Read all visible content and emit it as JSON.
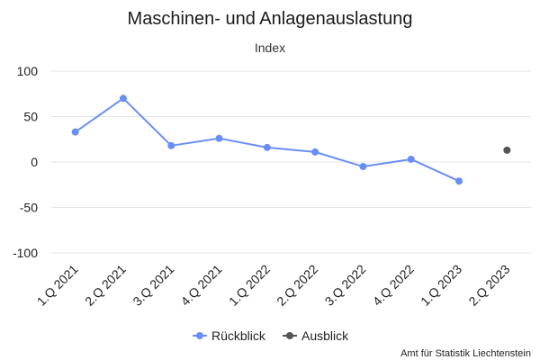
{
  "chart_data": {
    "type": "line",
    "title": "Maschinen- und Anlagenauslastung",
    "subtitle": "Index",
    "xlabel": "",
    "ylabel": "",
    "ylim": [
      -100,
      100
    ],
    "yticks": [
      100,
      50,
      0,
      -50,
      -100
    ],
    "categories": [
      "1.Q 2021",
      "2.Q 2021",
      "3.Q 2021",
      "4.Q 2021",
      "1.Q 2022",
      "2.Q 2022",
      "3.Q 2022",
      "4.Q 2022",
      "1.Q 2023",
      "2.Q 2023"
    ],
    "series": [
      {
        "name": "Rückblick",
        "color": "#6a8ef7",
        "values": [
          33,
          70,
          18,
          26,
          16,
          11,
          -5,
          3,
          -21,
          null
        ],
        "line": true
      },
      {
        "name": "Ausblick",
        "color": "#555555",
        "values": [
          null,
          null,
          null,
          null,
          null,
          null,
          null,
          null,
          null,
          13
        ],
        "line": false
      }
    ],
    "grid": true,
    "legend_position": "bottom-center"
  },
  "credit": "Amt für Statistik Liechtenstein"
}
